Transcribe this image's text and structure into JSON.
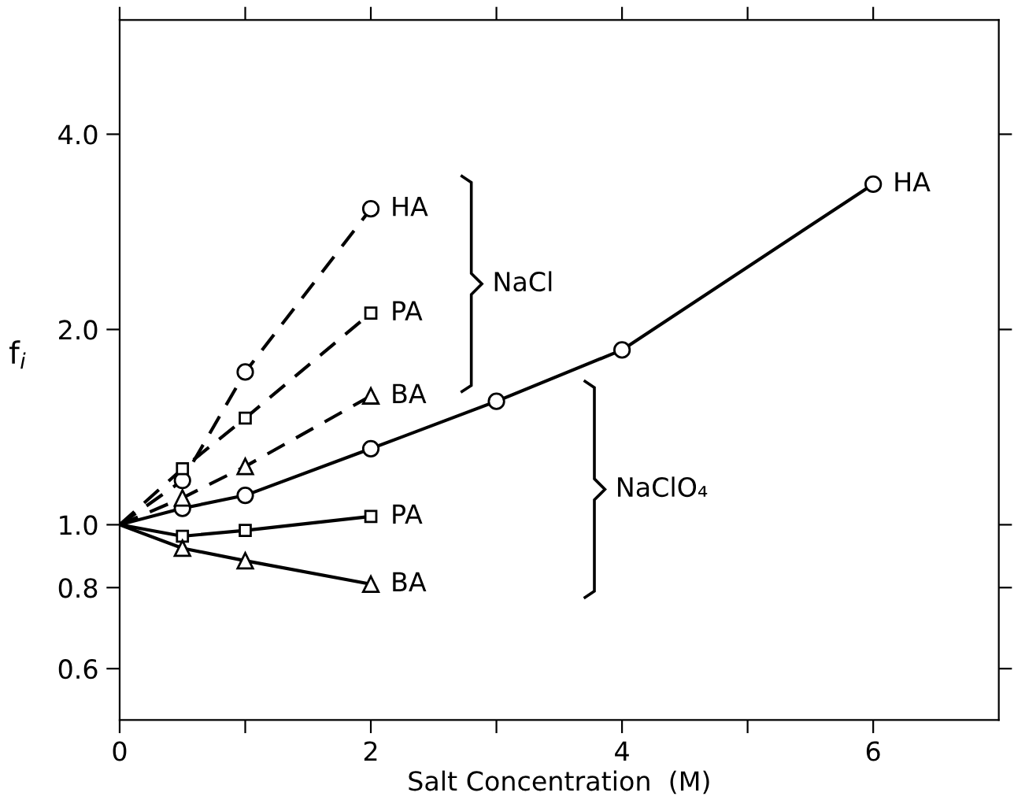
{
  "chart_data": {
    "type": "line",
    "xlabel": "Salt Concentration  (M)",
    "ylabel": "f$_{i}$",
    "log": "y",
    "xlim": [
      0,
      7
    ],
    "ylim": [
      0.5,
      6.0
    ],
    "xticks": [
      0,
      {
        "value": 1,
        "label": null
      },
      2,
      {
        "value": 3,
        "label": null
      },
      4,
      {
        "value": 5,
        "label": null
      },
      6
    ],
    "yticks": [
      {
        "value": 0.6,
        "label": "0.6"
      },
      {
        "value": 0.8,
        "label": "0.8"
      },
      {
        "value": 1.0,
        "label": "1.0"
      },
      {
        "value": 2.0,
        "label": "2.0"
      },
      {
        "value": 4.0,
        "label": "4.0"
      }
    ],
    "grid": false,
    "legend": false,
    "annotations": [
      "NaCl",
      "NaClO₄"
    ],
    "series": [
      {
        "name": "HA",
        "color": "#000000",
        "marker": "circle",
        "line_style": "dashed",
        "x": [
          0,
          0.5,
          1,
          2
        ],
        "values": [
          1.0,
          1.17,
          1.72,
          3.07
        ]
      },
      {
        "name": "PA",
        "color": "#000000",
        "marker": "square",
        "line_style": "dashed",
        "x": [
          0,
          0.5,
          1,
          2
        ],
        "values": [
          1.0,
          1.22,
          1.46,
          2.12
        ]
      },
      {
        "name": "BA",
        "color": "#000000",
        "marker": "triangle",
        "line_style": "dashed",
        "x": [
          0,
          0.5,
          1,
          2
        ],
        "values": [
          1.0,
          1.1,
          1.23,
          1.58
        ]
      },
      {
        "name": "HA",
        "color": "#000000",
        "marker": "circle",
        "line_style": "solid",
        "x": [
          0,
          0.5,
          1,
          2,
          3,
          4,
          6
        ],
        "values": [
          1.0,
          1.06,
          1.11,
          1.31,
          1.55,
          1.86,
          3.35
        ]
      },
      {
        "name": "PA",
        "color": "#000000",
        "marker": "square",
        "line_style": "solid",
        "x": [
          0,
          0.5,
          1,
          2
        ],
        "values": [
          1.0,
          0.96,
          0.98,
          1.03
        ]
      },
      {
        "name": "BA",
        "color": "#000000",
        "marker": "triangle",
        "line_style": "solid",
        "x": [
          0,
          0.5,
          1,
          2
        ],
        "values": [
          1.0,
          0.92,
          0.88,
          0.81
        ]
      }
    ]
  }
}
